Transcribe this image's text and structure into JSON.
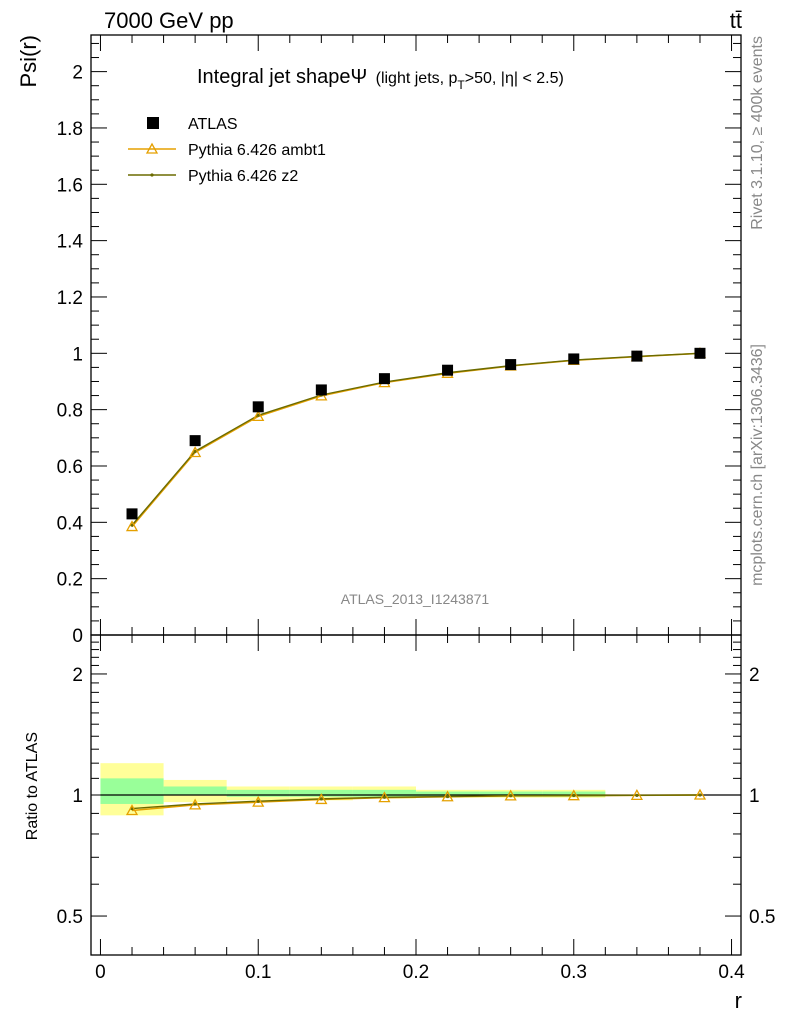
{
  "header": {
    "energy_label": "7000 GeV pp",
    "process_label": "tt̄"
  },
  "side_text": {
    "rivet": "Rivet 3.1.10, ≥ 400k events",
    "mcplots": "mcplots.cern.ch [arXiv:1306.3436]"
  },
  "main_panel": {
    "title": "Integral jet shapeΨ",
    "subtitle_pre": "(light jets, p",
    "subtitle_sub": "T",
    "subtitle_post": ">50, |η| < 2.5)",
    "ylabel": "Psi(r)",
    "watermark": "ATLAS_2013_I1243871",
    "yticks": [
      {
        "v": 0,
        "label": "0"
      },
      {
        "v": 0.2,
        "label": "0.2"
      },
      {
        "v": 0.4,
        "label": "0.4"
      },
      {
        "v": 0.6,
        "label": "0.6"
      },
      {
        "v": 0.8,
        "label": "0.8"
      },
      {
        "v": 1,
        "label": "1"
      },
      {
        "v": 1.2,
        "label": "1.2"
      },
      {
        "v": 1.4,
        "label": "1.4"
      },
      {
        "v": 1.6,
        "label": "1.6"
      },
      {
        "v": 1.8,
        "label": "1.8"
      },
      {
        "v": 2,
        "label": "2"
      }
    ]
  },
  "ratio_panel": {
    "ylabel": "Ratio to ATLAS",
    "yticks": [
      {
        "v": 0.5,
        "label": "0.5"
      },
      {
        "v": 1,
        "label": "1"
      },
      {
        "v": 2,
        "label": "2"
      }
    ]
  },
  "xaxis": {
    "label": "r",
    "ticks": [
      {
        "v": 0,
        "label": "0"
      },
      {
        "v": 0.1,
        "label": "0.1"
      },
      {
        "v": 0.2,
        "label": "0.2"
      },
      {
        "v": 0.3,
        "label": "0.3"
      },
      {
        "v": 0.4,
        "label": "0.4"
      }
    ]
  },
  "legend": {
    "atlas": "ATLAS",
    "ambt1": "Pythia 6.426 ambt1",
    "z2": "Pythia 6.426 z2"
  },
  "colors": {
    "atlas": "#000000",
    "ambt1": "#e5a000",
    "z2": "#6b6b00",
    "band_green": "#99ff99",
    "band_yellow": "#ffff99",
    "grey_text": "#888888"
  },
  "chart_data": {
    "type": "line",
    "xlabel": "r",
    "ylabel": "Psi(r)",
    "xlim": [
      -0.006,
      0.406
    ],
    "ylim": [
      0,
      2.13
    ],
    "ratio_ylim": [
      0.4,
      2.5
    ],
    "ratio_scale": "log",
    "x": [
      0.02,
      0.06,
      0.1,
      0.14,
      0.18,
      0.22,
      0.26,
      0.3,
      0.34,
      0.38
    ],
    "bin_edges": [
      0,
      0.04,
      0.08,
      0.12,
      0.16,
      0.2,
      0.24,
      0.28,
      0.32,
      0.36,
      0.4
    ],
    "series": [
      {
        "name": "ATLAS",
        "marker": "square",
        "values": [
          0.43,
          0.69,
          0.81,
          0.87,
          0.91,
          0.94,
          0.96,
          0.98,
          0.99,
          1.0
        ]
      },
      {
        "name": "Pythia 6.426 ambt1",
        "marker": "triangle",
        "values": [
          0.385,
          0.648,
          0.776,
          0.849,
          0.896,
          0.929,
          0.955,
          0.975,
          0.988,
          1.0
        ],
        "ratio": [
          0.915,
          0.945,
          0.96,
          0.975,
          0.985,
          0.99,
          0.995,
          0.996,
          0.998,
          1.0
        ]
      },
      {
        "name": "Pythia 6.426 z2",
        "marker": "dot",
        "values": [
          0.39,
          0.652,
          0.78,
          0.852,
          0.898,
          0.931,
          0.956,
          0.976,
          0.989,
          1.0
        ],
        "ratio": [
          0.925,
          0.95,
          0.965,
          0.978,
          0.987,
          0.991,
          0.996,
          0.997,
          0.998,
          1.0
        ]
      }
    ],
    "ratio_band_green": [
      [
        0.95,
        1.1
      ],
      [
        1.0,
        1.05
      ],
      [
        0.99,
        1.03
      ],
      [
        0.99,
        1.03
      ],
      [
        0.99,
        1.03
      ],
      [
        0.99,
        1.02
      ],
      [
        0.99,
        1.02
      ],
      [
        0.99,
        1.02
      ],
      [
        1.0,
        1.0
      ],
      [
        1.0,
        1.0
      ]
    ],
    "ratio_band_yellow": [
      [
        0.89,
        1.2
      ],
      [
        0.96,
        1.09
      ],
      [
        0.97,
        1.05
      ],
      [
        0.97,
        1.05
      ],
      [
        0.98,
        1.05
      ],
      [
        0.985,
        1.03
      ],
      [
        0.985,
        1.03
      ],
      [
        0.985,
        1.03
      ],
      [
        1.0,
        1.0
      ],
      [
        1.0,
        1.0
      ]
    ]
  }
}
